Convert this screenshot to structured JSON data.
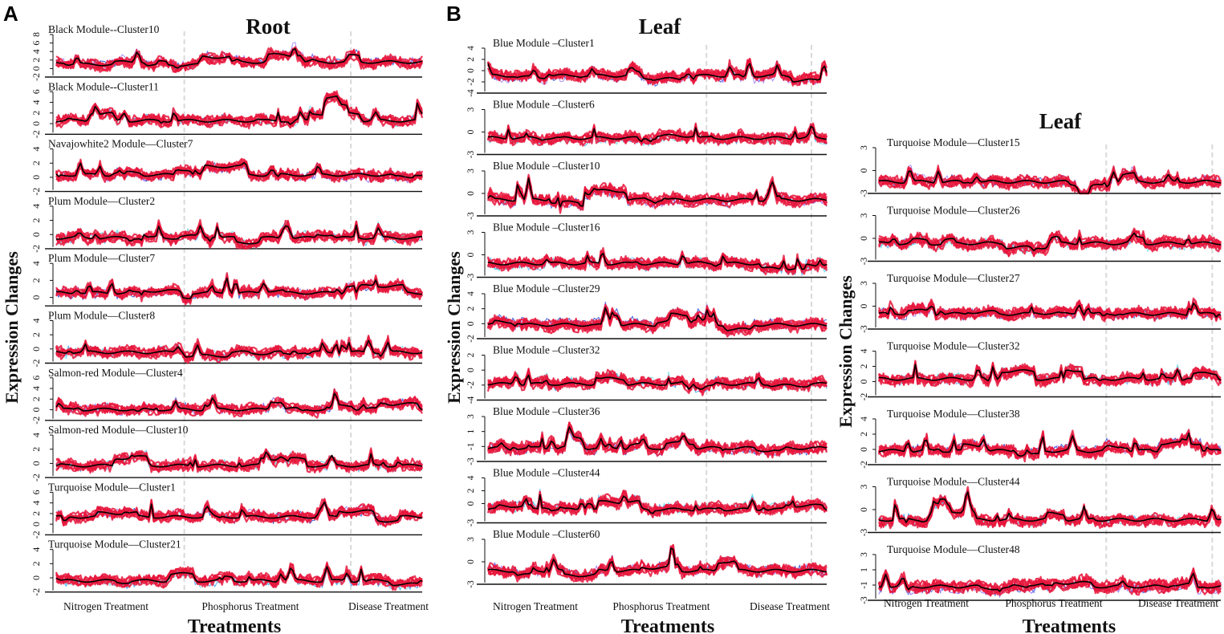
{
  "figure": {
    "panel_labels": [
      "A",
      "B"
    ],
    "background": "#ffffff",
    "gene_color": "#e8163c",
    "gene_alt_colors": [
      "#3b5bdb",
      "#4dabf7",
      "#9775fa",
      "#66d9e8"
    ],
    "mean_color": "#000000",
    "divider_color": "#d9d9d9",
    "treatment_labels": [
      "Nitrogen Treatment",
      "Phosphorus Treatment",
      "Disease Treatment"
    ]
  },
  "chart_data": [
    {
      "type": "line",
      "panel": "A",
      "title": "Root",
      "ylabel": "Expression Changes",
      "xlabel": "Treatments",
      "x_categories": [
        "Nitrogen Treatment",
        "Phosphorus Treatment",
        "Disease Treatment"
      ],
      "clusters": [
        {
          "name": "Black Module--Cluster10",
          "yticks": [
            "-2",
            "0",
            "2",
            "4",
            "6",
            "8"
          ],
          "ylim": [
            -2,
            8
          ]
        },
        {
          "name": "Black Module--Cluster11",
          "yticks": [
            "-2",
            "0",
            "2",
            "4",
            "6"
          ],
          "ylim": [
            -2,
            6
          ]
        },
        {
          "name": "Navajowhite2 Module—Cluster7",
          "yticks": [
            "-2",
            "0",
            "2",
            "4"
          ],
          "ylim": [
            -2,
            4
          ]
        },
        {
          "name": "Plum Module—Cluster2",
          "yticks": [
            "-2",
            "0",
            "2",
            "4"
          ],
          "ylim": [
            -2,
            4
          ]
        },
        {
          "name": "Plum Module—Cluster7",
          "yticks": [
            "0",
            "2",
            "4"
          ],
          "ylim": [
            -1,
            4
          ]
        },
        {
          "name": "Plum Module—Cluster8",
          "yticks": [
            "-2",
            "0",
            "2",
            "4"
          ],
          "ylim": [
            -2,
            4
          ]
        },
        {
          "name": "Salmon-red Module—Cluster4",
          "yticks": [
            "-2",
            "0",
            "2",
            "4",
            "6"
          ],
          "ylim": [
            -2,
            6
          ]
        },
        {
          "name": "Salmon-red Module—Cluster10",
          "yticks": [
            "-2",
            "0",
            "2",
            "4"
          ],
          "ylim": [
            -2,
            4
          ]
        },
        {
          "name": "Turquoise Module—Cluster1",
          "yticks": [
            "-2",
            "0",
            "2",
            "4",
            "6"
          ],
          "ylim": [
            -2,
            6
          ]
        },
        {
          "name": "Turquoise Module—Cluster21",
          "yticks": [
            "-2",
            "0",
            "2",
            "4"
          ],
          "ylim": [
            -2,
            4
          ]
        }
      ]
    },
    {
      "type": "line",
      "panel": "B",
      "title": "Leaf",
      "ylabel": "Expression Changes",
      "xlabel": "Treatments",
      "x_categories": [
        "Nitrogen Treatment",
        "Phosphorus Treatment",
        "Disease Treatment"
      ],
      "clusters": [
        {
          "name": "Blue Module –Cluster1",
          "yticks": [
            "-4",
            "-2",
            "0",
            "2",
            "4"
          ],
          "ylim": [
            -4,
            4
          ]
        },
        {
          "name": "Blue Module –Cluster6",
          "yticks": [
            "-3",
            "0",
            "3"
          ],
          "ylim": [
            -3,
            3
          ]
        },
        {
          "name": "Blue Module –Cluster10",
          "yticks": [
            "-3",
            "0",
            "3"
          ],
          "ylim": [
            -3,
            3
          ]
        },
        {
          "name": "Blue Module –Cluster16",
          "yticks": [
            "-3",
            "0",
            "3"
          ],
          "ylim": [
            -3,
            3
          ]
        },
        {
          "name": "Blue Module –Cluster29",
          "yticks": [
            "-2",
            "0",
            "2",
            "4"
          ],
          "ylim": [
            -2,
            4
          ]
        },
        {
          "name": "Blue Module –Cluster32",
          "yticks": [
            "-4",
            "-2",
            "0",
            "2"
          ],
          "ylim": [
            -4,
            2
          ]
        },
        {
          "name": "Blue Module –Cluster36",
          "yticks": [
            "-3",
            "-1",
            "1",
            "3"
          ],
          "ylim": [
            -3,
            3
          ]
        },
        {
          "name": "Blue Module –Cluster44",
          "yticks": [
            "-3",
            "0",
            "2",
            "4"
          ],
          "ylim": [
            -3,
            4
          ]
        },
        {
          "name": "Blue Module –Cluster60",
          "yticks": [
            "-3",
            "0",
            "3"
          ],
          "ylim": [
            -3,
            3
          ]
        }
      ]
    },
    {
      "type": "line",
      "panel": "B",
      "title": "Leaf",
      "ylabel": "Expression Changes",
      "xlabel": "Treatments",
      "x_categories": [
        "Nitrogen Treatment",
        "Phosphorus Treatment",
        "Disease Treatment"
      ],
      "clusters": [
        {
          "name": "Turquoise Module—Cluster15",
          "yticks": [
            "-3",
            "0",
            "3"
          ],
          "ylim": [
            -3,
            3
          ]
        },
        {
          "name": "Turquoise Module—Cluster26",
          "yticks": [
            "-3",
            "0",
            "3"
          ],
          "ylim": [
            -3,
            3
          ]
        },
        {
          "name": "Turquoise Module—Cluster27",
          "yticks": [
            "-3",
            "0",
            "3"
          ],
          "ylim": [
            -3,
            3
          ]
        },
        {
          "name": "Turquoise Module—Cluster32",
          "yticks": [
            "-2",
            "0",
            "2",
            "4"
          ],
          "ylim": [
            -2,
            4
          ]
        },
        {
          "name": "Turquoise Module—Cluster38",
          "yticks": [
            "-2",
            "0",
            "2",
            "4"
          ],
          "ylim": [
            -2,
            4
          ]
        },
        {
          "name": "Turquoise Module—Cluster44",
          "yticks": [
            "-3",
            "0",
            "3"
          ],
          "ylim": [
            -3,
            3
          ]
        },
        {
          "name": "Turquoise Module—Cluster48",
          "yticks": [
            "-3",
            "-1",
            "1",
            "3"
          ],
          "ylim": [
            -3,
            3
          ]
        }
      ]
    }
  ]
}
